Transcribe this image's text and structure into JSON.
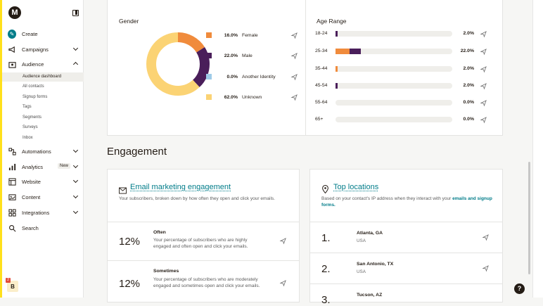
{
  "sidebar": {
    "logo_letter": "M",
    "items": [
      {
        "label": "Create"
      },
      {
        "label": "Campaigns"
      },
      {
        "label": "Audience"
      },
      {
        "label": "Automations"
      },
      {
        "label": "Analytics",
        "badge": "New"
      },
      {
        "label": "Website"
      },
      {
        "label": "Content"
      },
      {
        "label": "Integrations"
      },
      {
        "label": "Search"
      }
    ],
    "audience_sub": [
      {
        "label": "Audience dashboard",
        "active": true
      },
      {
        "label": "All contacts"
      },
      {
        "label": "Signup forms"
      },
      {
        "label": "Tags"
      },
      {
        "label": "Segments"
      },
      {
        "label": "Surveys"
      },
      {
        "label": "Inbox"
      }
    ],
    "user_initial": "B",
    "notification_count": "2"
  },
  "gender": {
    "title": "Gender",
    "rows": [
      {
        "pct": "16.0%",
        "label": "Female",
        "value": 16.0,
        "color": "#f08b3c"
      },
      {
        "pct": "22.0%",
        "label": "Male",
        "value": 22.0,
        "color": "#4a1e5a"
      },
      {
        "pct": "0.0%",
        "label": "Another Identity",
        "value": 0.0,
        "color": "#9fcbe8"
      },
      {
        "pct": "62.0%",
        "label": "Unknown",
        "value": 62.0,
        "color": "#fbd374"
      }
    ]
  },
  "age": {
    "title": "Age Range",
    "rows": [
      {
        "label": "18-24",
        "pct": "2.0%",
        "value": 2.0
      },
      {
        "label": "25-34",
        "pct": "22.0%",
        "value": 22.0
      },
      {
        "label": "35-44",
        "pct": "2.0%",
        "value": 2.0
      },
      {
        "label": "45-54",
        "pct": "2.0%",
        "value": 2.0
      },
      {
        "label": "55-64",
        "pct": "0.0%",
        "value": 0.0
      },
      {
        "label": "65+",
        "pct": "0.0%",
        "value": 0.0
      }
    ]
  },
  "engagement": {
    "section_title": "Engagement",
    "email": {
      "title": "Email marketing engagement",
      "desc": "Your subscribers, broken down by how often they open and click your emails.",
      "rows": [
        {
          "pct": "12%",
          "title": "Often",
          "desc": "Your percentage of subscribers who are highly engaged and often open and click your emails."
        },
        {
          "pct": "12%",
          "title": "Sometimes",
          "desc": "Your percentage of subscribers who are moderately engaged and sometimes open and click your emails."
        }
      ]
    },
    "locations": {
      "title": "Top locations",
      "desc": "Based on your contact's IP address when they interact with your",
      "desc_link": "emails and signup forms.",
      "rows": [
        {
          "num": "1.",
          "city": "Atlanta, GA",
          "country": "USA"
        },
        {
          "num": "2.",
          "city": "San Antonio, TX",
          "country": "USA"
        },
        {
          "num": "3.",
          "city": "Tucson, AZ",
          "country": ""
        }
      ]
    }
  },
  "help_label": "?"
}
